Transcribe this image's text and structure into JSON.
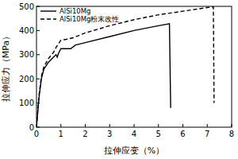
{
  "chart_data": {
    "type": "line",
    "x_label": "拉伸应变（%）",
    "y_label": "拉伸应力（MPa）",
    "xlim": [
      0,
      8
    ],
    "xticks": [
      0,
      1,
      2,
      3,
      4,
      5,
      6,
      7,
      8
    ],
    "ylim": [
      0,
      500
    ],
    "yticks": [
      0,
      100,
      200,
      300,
      400,
      500
    ],
    "grid": false,
    "legend": "upper left",
    "series": [
      {
        "name": "AlSi10Mg",
        "color": "#000000",
        "line_style": "solid",
        "x": [
          0,
          0.1,
          0.2,
          0.3,
          0.5,
          0.7,
          0.8,
          0.85,
          0.9,
          0.95,
          1.0,
          1.3,
          1.4,
          1.6,
          2,
          3,
          4,
          5,
          5.45,
          5.5
        ],
        "values": [
          0,
          120,
          200,
          240,
          270,
          290,
          300,
          290,
          305,
          315,
          325,
          325,
          325,
          340,
          350,
          375,
          400,
          420,
          428,
          80
        ]
      },
      {
        "name": "AlSi10Mg粉末改性",
        "color": "#000000",
        "line_style": "dashed",
        "x": [
          0,
          0.1,
          0.2,
          0.3,
          0.5,
          0.7,
          0.8,
          0.9,
          1.0,
          1.3,
          1.5,
          2,
          3,
          4,
          5,
          6,
          7,
          7.25,
          7.28
        ],
        "values": [
          0,
          130,
          210,
          250,
          285,
          310,
          330,
          345,
          360,
          365,
          370,
          390,
          420,
          445,
          465,
          480,
          495,
          498,
          100
        ]
      }
    ]
  }
}
